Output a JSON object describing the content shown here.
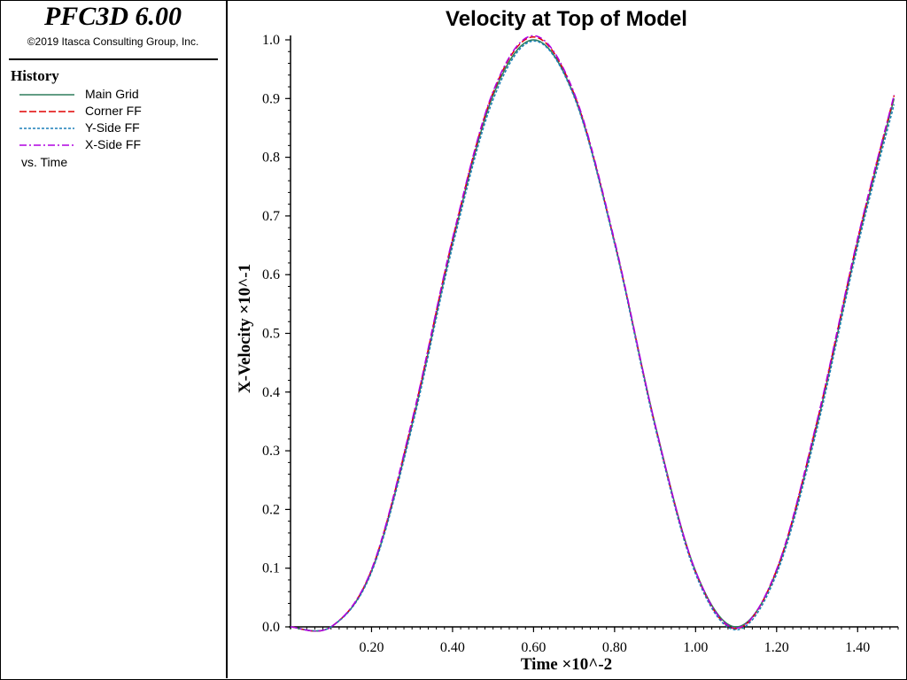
{
  "app": {
    "title": "PFC3D 6.00",
    "copyright": "©2019 Itasca Consulting Group, Inc."
  },
  "legend": {
    "heading": "History",
    "items": [
      {
        "label": "Main Grid",
        "color": "#2e7d5b",
        "dash": "solid"
      },
      {
        "label": "Corner FF",
        "color": "#e00000",
        "dash": "dashed"
      },
      {
        "label": "Y-Side FF",
        "color": "#1a7fb8",
        "dash": "dotted"
      },
      {
        "label": "X-Side FF",
        "color": "#b000e0",
        "dash": "dashdot"
      }
    ],
    "vs_label": "vs. Time"
  },
  "chart_data": {
    "type": "line",
    "title": "Velocity at Top of Model",
    "xlabel": "Time ×10^-2",
    "ylabel": "X-Velocity ×10^-1",
    "xlim": [
      0.0,
      1.5
    ],
    "ylim": [
      0.0,
      1.0
    ],
    "x_ticks": [
      "0.20",
      "0.40",
      "0.60",
      "0.80",
      "1.00",
      "1.20",
      "1.40"
    ],
    "y_ticks": [
      "0.0",
      "0.1",
      "0.2",
      "0.3",
      "0.4",
      "0.5",
      "0.6",
      "0.7",
      "0.8",
      "0.9",
      "1.0"
    ],
    "grid": false,
    "series": [
      {
        "name": "Main Grid",
        "color": "#2e7d5b",
        "dash": "solid",
        "x": [
          0.0,
          0.1,
          0.2,
          0.3,
          0.4,
          0.5,
          0.6,
          0.7,
          0.8,
          0.9,
          1.0,
          1.1,
          1.2,
          1.3,
          1.4,
          1.49
        ],
        "y": [
          0.0,
          0.0,
          0.095,
          0.345,
          0.655,
          0.905,
          1.0,
          0.905,
          0.655,
          0.345,
          0.095,
          0.0,
          0.095,
          0.345,
          0.655,
          0.9
        ]
      },
      {
        "name": "Corner FF",
        "color": "#e00000",
        "dash": "dashed",
        "x": [
          0.0,
          0.1,
          0.2,
          0.3,
          0.4,
          0.5,
          0.6,
          0.7,
          0.8,
          0.9,
          1.0,
          1.1,
          1.2,
          1.3,
          1.4,
          1.49
        ],
        "y": [
          0.0,
          0.0,
          0.097,
          0.35,
          0.66,
          0.91,
          1.005,
          0.908,
          0.655,
          0.343,
          0.093,
          -0.003,
          0.097,
          0.35,
          0.66,
          0.905
        ]
      },
      {
        "name": "Y-Side FF",
        "color": "#1a7fb8",
        "dash": "dotted",
        "x": [
          0.0,
          0.1,
          0.2,
          0.3,
          0.4,
          0.5,
          0.6,
          0.7,
          0.8,
          0.9,
          1.0,
          1.1,
          1.2,
          1.3,
          1.4,
          1.49
        ],
        "y": [
          0.0,
          0.0,
          0.093,
          0.34,
          0.648,
          0.898,
          0.998,
          0.903,
          0.652,
          0.34,
          0.09,
          -0.005,
          0.09,
          0.338,
          0.648,
          0.89
        ]
      },
      {
        "name": "X-Side FF",
        "color": "#b000e0",
        "dash": "dashdot",
        "x": [
          0.0,
          0.1,
          0.2,
          0.3,
          0.4,
          0.5,
          0.6,
          0.7,
          0.8,
          0.9,
          1.0,
          1.1,
          1.2,
          1.3,
          1.4,
          1.49
        ],
        "y": [
          0.0,
          0.0,
          0.098,
          0.352,
          0.662,
          0.912,
          1.007,
          0.91,
          0.658,
          0.345,
          0.095,
          -0.002,
          0.098,
          0.352,
          0.662,
          0.906
        ]
      }
    ]
  }
}
